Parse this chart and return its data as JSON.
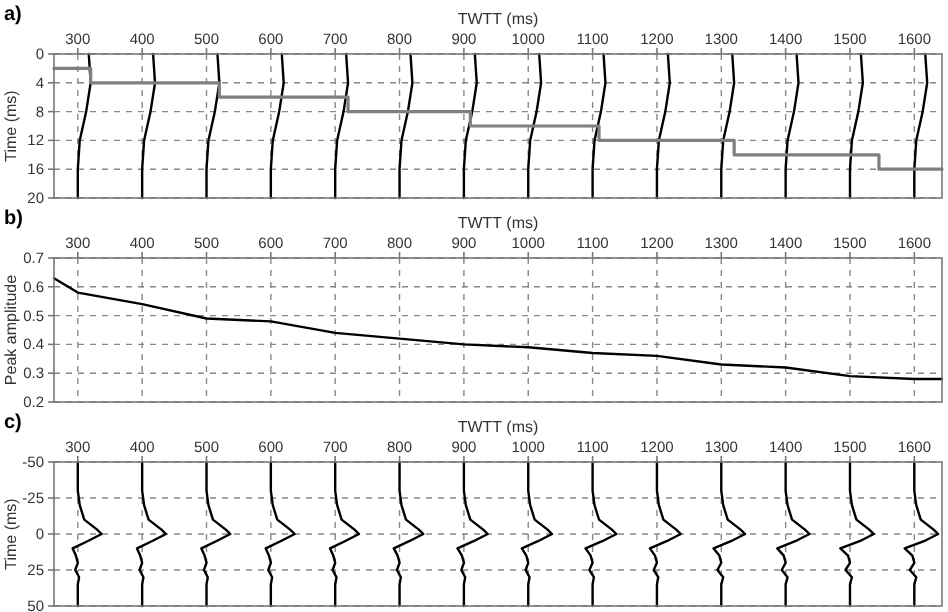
{
  "chart_data": [
    {
      "type": "line",
      "title": "a)",
      "xlabel": "TWTT (ms)",
      "ylabel": "Time (ms)",
      "xlim": [
        263,
        1643
      ],
      "xticks": [
        300,
        400,
        500,
        600,
        700,
        800,
        900,
        1000,
        1100,
        1200,
        1300,
        1400,
        1500,
        1600
      ],
      "ylim": [
        20,
        0
      ],
      "yticks": [
        0,
        4,
        8,
        12,
        16,
        20
      ],
      "grid": true,
      "series": [
        {
          "color": "#000000",
          "x": [
            317,
            320,
            313,
            303,
            300,
            300
          ],
          "values": [
            0,
            4,
            8,
            12,
            16,
            20
          ]
        },
        {
          "color": "#000000",
          "x": [
            417,
            420,
            413,
            403,
            400,
            400
          ],
          "values": [
            0,
            4,
            8,
            12,
            16,
            20
          ]
        },
        {
          "color": "#000000",
          "x": [
            517,
            520,
            513,
            503,
            500,
            500
          ],
          "values": [
            0,
            4,
            8,
            12,
            16,
            20
          ]
        },
        {
          "color": "#000000",
          "x": [
            617,
            620,
            613,
            603,
            600,
            600
          ],
          "values": [
            0,
            4,
            8,
            12,
            16,
            20
          ]
        },
        {
          "color": "#000000",
          "x": [
            717,
            720,
            713,
            703,
            700,
            700
          ],
          "values": [
            0,
            4,
            8,
            12,
            16,
            20
          ]
        },
        {
          "color": "#000000",
          "x": [
            817,
            820,
            813,
            803,
            800,
            800
          ],
          "values": [
            0,
            4,
            8,
            12,
            16,
            20
          ]
        },
        {
          "color": "#000000",
          "x": [
            917,
            920,
            913,
            903,
            900,
            900
          ],
          "values": [
            0,
            4,
            8,
            12,
            16,
            20
          ]
        },
        {
          "color": "#000000",
          "x": [
            1017,
            1020,
            1013,
            1003,
            1000,
            1000
          ],
          "values": [
            0,
            4,
            8,
            12,
            16,
            20
          ]
        },
        {
          "color": "#000000",
          "x": [
            1117,
            1120,
            1113,
            1103,
            1100,
            1100
          ],
          "values": [
            0,
            4,
            8,
            12,
            16,
            20
          ]
        },
        {
          "color": "#000000",
          "x": [
            1217,
            1220,
            1213,
            1203,
            1200,
            1200
          ],
          "values": [
            0,
            4,
            8,
            12,
            16,
            20
          ]
        },
        {
          "color": "#000000",
          "x": [
            1317,
            1320,
            1313,
            1303,
            1300,
            1300
          ],
          "values": [
            0,
            4,
            8,
            12,
            16,
            20
          ]
        },
        {
          "color": "#000000",
          "x": [
            1417,
            1420,
            1413,
            1403,
            1400,
            1400
          ],
          "values": [
            0,
            4,
            8,
            12,
            16,
            20
          ]
        },
        {
          "color": "#000000",
          "x": [
            1517,
            1520,
            1513,
            1503,
            1500,
            1500
          ],
          "values": [
            0,
            4,
            8,
            12,
            16,
            20
          ]
        },
        {
          "color": "#000000",
          "x": [
            1617,
            1620,
            1613,
            1603,
            1600,
            1600
          ],
          "values": [
            0,
            4,
            8,
            12,
            16,
            20
          ]
        },
        {
          "type": "step",
          "color": "#7f7f7f",
          "x": [
            263,
            320,
            520,
            720,
            910,
            1110,
            1320,
            1545,
            1643
          ],
          "values": [
            2,
            4,
            6,
            8,
            10,
            12,
            14,
            16,
            16
          ]
        }
      ]
    },
    {
      "type": "line",
      "title": "b)",
      "xlabel": "TWTT (ms)",
      "ylabel": "Peak amplitude",
      "xlim": [
        263,
        1643
      ],
      "xticks": [
        300,
        400,
        500,
        600,
        700,
        800,
        900,
        1000,
        1100,
        1200,
        1300,
        1400,
        1500,
        1600
      ],
      "ylim": [
        0.2,
        0.7
      ],
      "yticks": [
        0.2,
        0.3,
        0.4,
        0.5,
        0.6,
        0.7
      ],
      "grid": true,
      "series": [
        {
          "color": "#000000",
          "x": [
            263,
            300,
            400,
            500,
            600,
            700,
            800,
            900,
            1000,
            1100,
            1200,
            1300,
            1400,
            1500,
            1600,
            1643
          ],
          "values": [
            0.63,
            0.58,
            0.54,
            0.49,
            0.48,
            0.44,
            0.42,
            0.4,
            0.39,
            0.37,
            0.36,
            0.33,
            0.32,
            0.29,
            0.28,
            0.28
          ]
        }
      ]
    },
    {
      "type": "line",
      "title": "c)",
      "xlabel": "TWTT (ms)",
      "ylabel": "Time (ms)",
      "xlim": [
        263,
        1643
      ],
      "xticks": [
        300,
        400,
        500,
        600,
        700,
        800,
        900,
        1000,
        1100,
        1200,
        1300,
        1400,
        1500,
        1600
      ],
      "ylim": [
        50,
        -50
      ],
      "yticks": [
        -50,
        -25,
        0,
        25,
        50
      ],
      "grid": true,
      "series": [
        {
          "color": "#000000",
          "x": [
            300,
            300,
            303,
            310,
            330,
            337,
            315,
            292,
            297,
            300,
            296,
            302,
            300,
            300
          ],
          "values": [
            -50,
            -30,
            -20,
            -10,
            -3,
            0,
            5,
            10,
            15,
            20,
            25,
            30,
            35,
            50
          ]
        },
        {
          "color": "#000000",
          "x": [
            400,
            400,
            403,
            410,
            430,
            437,
            415,
            392,
            397,
            400,
            396,
            402,
            400,
            400
          ],
          "values": [
            -50,
            -30,
            -20,
            -10,
            -3,
            0,
            5,
            10,
            15,
            20,
            25,
            30,
            35,
            50
          ]
        },
        {
          "color": "#000000",
          "x": [
            500,
            500,
            503,
            510,
            530,
            537,
            515,
            492,
            497,
            500,
            496,
            502,
            500,
            500
          ],
          "values": [
            -50,
            -30,
            -20,
            -10,
            -3,
            0,
            5,
            10,
            15,
            20,
            25,
            30,
            35,
            50
          ]
        },
        {
          "color": "#000000",
          "x": [
            600,
            600,
            603,
            610,
            630,
            637,
            615,
            592,
            597,
            600,
            596,
            602,
            600,
            600
          ],
          "values": [
            -50,
            -30,
            -20,
            -10,
            -3,
            0,
            5,
            10,
            15,
            20,
            25,
            30,
            35,
            50
          ]
        },
        {
          "color": "#000000",
          "x": [
            700,
            700,
            703,
            710,
            730,
            737,
            715,
            692,
            697,
            700,
            696,
            702,
            700,
            700
          ],
          "values": [
            -50,
            -30,
            -20,
            -10,
            -3,
            0,
            5,
            10,
            15,
            20,
            25,
            30,
            35,
            50
          ]
        },
        {
          "color": "#000000",
          "x": [
            800,
            800,
            803,
            810,
            830,
            837,
            815,
            791,
            797,
            800,
            796,
            802,
            800,
            800
          ],
          "values": [
            -50,
            -30,
            -20,
            -10,
            -3,
            0,
            5,
            10,
            15,
            20,
            25,
            30,
            35,
            50
          ]
        },
        {
          "color": "#000000",
          "x": [
            900,
            900,
            903,
            910,
            930,
            937,
            915,
            890,
            897,
            900,
            896,
            902,
            900,
            900
          ],
          "values": [
            -50,
            -30,
            -20,
            -10,
            -3,
            0,
            5,
            10,
            15,
            20,
            25,
            30,
            35,
            50
          ]
        },
        {
          "color": "#000000",
          "x": [
            1000,
            1000,
            1003,
            1010,
            1030,
            1037,
            1015,
            990,
            997,
            1000,
            996,
            1002,
            1000,
            1000
          ],
          "values": [
            -50,
            -30,
            -20,
            -10,
            -3,
            0,
            5,
            10,
            15,
            20,
            25,
            30,
            35,
            50
          ]
        },
        {
          "color": "#000000",
          "x": [
            1100,
            1100,
            1103,
            1110,
            1130,
            1137,
            1115,
            1089,
            1097,
            1100,
            1095,
            1102,
            1100,
            1100
          ],
          "values": [
            -50,
            -30,
            -20,
            -10,
            -3,
            0,
            5,
            10,
            15,
            20,
            25,
            30,
            35,
            50
          ]
        },
        {
          "color": "#000000",
          "x": [
            1200,
            1200,
            1203,
            1210,
            1230,
            1237,
            1215,
            1189,
            1197,
            1200,
            1195,
            1202,
            1200,
            1200
          ],
          "values": [
            -50,
            -30,
            -20,
            -10,
            -3,
            0,
            5,
            10,
            15,
            20,
            25,
            30,
            35,
            50
          ]
        },
        {
          "color": "#000000",
          "x": [
            1300,
            1300,
            1303,
            1310,
            1330,
            1337,
            1315,
            1288,
            1297,
            1300,
            1294,
            1303,
            1300,
            1300
          ],
          "values": [
            -50,
            -30,
            -20,
            -10,
            -3,
            0,
            5,
            10,
            15,
            20,
            25,
            30,
            35,
            50
          ]
        },
        {
          "color": "#000000",
          "x": [
            1400,
            1400,
            1403,
            1410,
            1430,
            1437,
            1415,
            1387,
            1397,
            1400,
            1394,
            1403,
            1400,
            1400
          ],
          "values": [
            -50,
            -30,
            -20,
            -10,
            -3,
            0,
            5,
            10,
            15,
            20,
            25,
            30,
            35,
            50
          ]
        },
        {
          "color": "#000000",
          "x": [
            1500,
            1500,
            1503,
            1510,
            1530,
            1537,
            1515,
            1485,
            1497,
            1500,
            1493,
            1503,
            1500,
            1500
          ],
          "values": [
            -50,
            -30,
            -20,
            -10,
            -3,
            0,
            5,
            10,
            15,
            20,
            25,
            30,
            35,
            50
          ]
        },
        {
          "color": "#000000",
          "x": [
            1600,
            1600,
            1603,
            1610,
            1630,
            1637,
            1615,
            1585,
            1597,
            1600,
            1593,
            1603,
            1600,
            1600
          ],
          "values": [
            -50,
            -30,
            -20,
            -10,
            -3,
            0,
            5,
            10,
            15,
            20,
            25,
            30,
            35,
            50
          ]
        }
      ]
    }
  ]
}
